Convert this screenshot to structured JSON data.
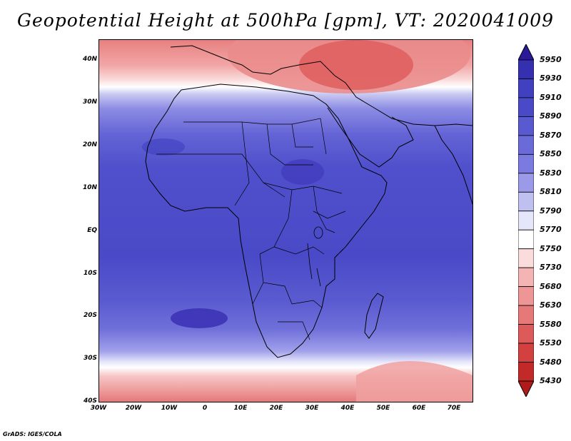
{
  "title": "Geopotential Height at 500hPa [gpm], VT: 2020041009",
  "credit": "GrADS: IGES/COLA",
  "map": {
    "lat_labels": [
      "40N",
      "30N",
      "20N",
      "10N",
      "EQ",
      "10S",
      "20S",
      "30S",
      "40S"
    ],
    "lon_labels": [
      "30W",
      "20W",
      "10W",
      "0",
      "10E",
      "20E",
      "30E",
      "40E",
      "50E",
      "60E",
      "70E"
    ],
    "lat_range": [
      -40,
      45
    ],
    "lon_range": [
      -30,
      75
    ]
  },
  "colorbar": {
    "labels": [
      "5950",
      "5930",
      "5910",
      "5890",
      "5870",
      "5850",
      "5830",
      "5810",
      "5790",
      "5770",
      "5750",
      "5730",
      "5680",
      "5630",
      "5580",
      "5530",
      "5480",
      "5430"
    ],
    "colors": [
      "#2a1a9a",
      "#3530b0",
      "#4040c0",
      "#4a4ac8",
      "#5a5ad0",
      "#6a6ad8",
      "#7a7ae0",
      "#9a9ae8",
      "#c0c0f0",
      "#e6e6fa",
      "#ffffff",
      "#fadcdc",
      "#f4b4b4",
      "#ee9696",
      "#e67878",
      "#dc5a5a",
      "#d24040",
      "#c22a2a",
      "#b01a1a"
    ]
  },
  "colors": {
    "trough_red": "#e06a6a",
    "mid_white": "#ffffff",
    "ridge_blue": "#4a4ac8"
  }
}
